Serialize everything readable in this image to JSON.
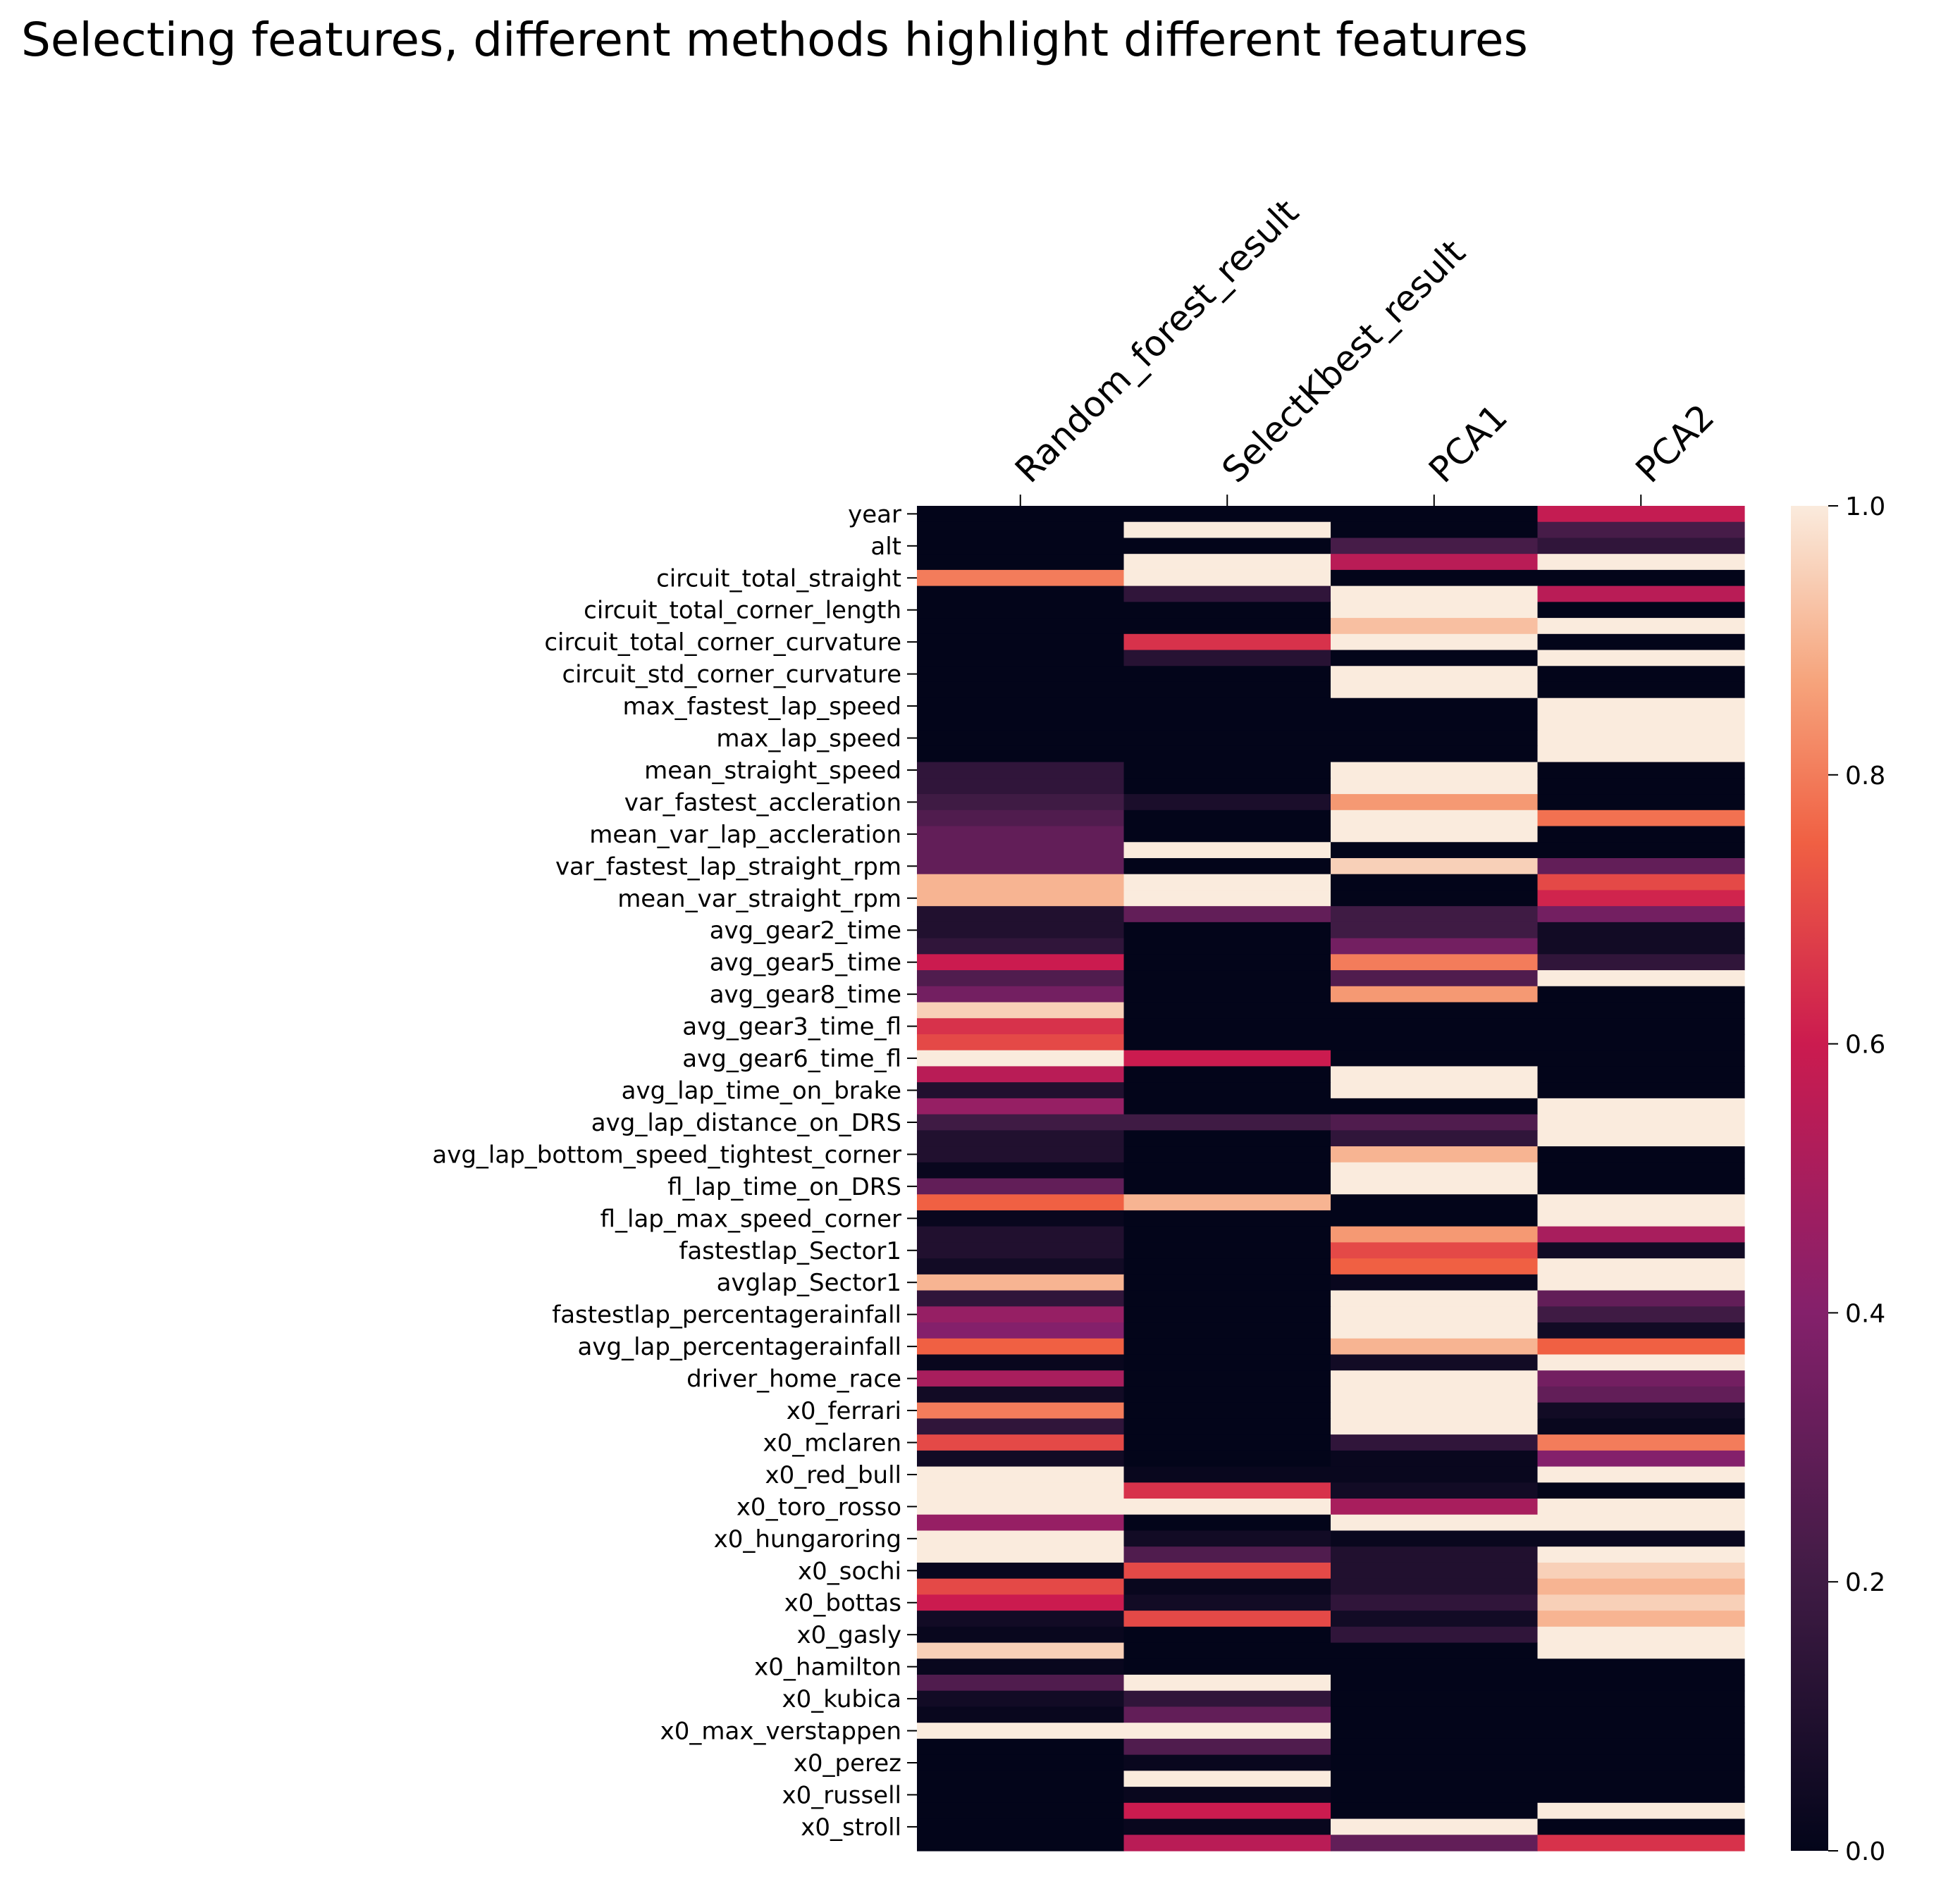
{
  "chart_data": {
    "type": "heatmap",
    "title": "Selecting features, different methods highlight different features",
    "columns": [
      "Random_forest_result",
      "SelectKbest_result",
      "PCA1",
      "PCA2"
    ],
    "row_tick_labels": [
      "year",
      "alt",
      "circuit_total_straight",
      "circuit_total_corner_length",
      "circuit_total_corner_curvature",
      "circuit_std_corner_curvature",
      "max_fastest_lap_speed",
      "max_lap_speed",
      "mean_straight_speed",
      "var_fastest_accleration",
      "mean_var_lap_accleration",
      "var_fastest_lap_straight_rpm",
      "mean_var_straight_rpm",
      "avg_gear2_time",
      "avg_gear5_time",
      "avg_gear8_time",
      "avg_gear3_time_fl",
      "avg_gear6_time_fl",
      "avg_lap_time_on_brake",
      "avg_lap_distance_on_DRS",
      "avg_lap_bottom_speed_tightest_corner",
      "fl_lap_time_on_DRS",
      "fl_lap_max_speed_corner",
      "fastestlap_Sector1",
      "avglap_Sector1",
      "fastestlap_percentagerainfall",
      "avg_lap_percentagerainfall",
      "driver_home_race",
      "x0_ferrari",
      "x0_mclaren",
      "x0_red_bull",
      "x0_toro_rosso",
      "x0_hungaroring",
      "x0_sochi",
      "x0_bottas",
      "x0_gasly",
      "x0_hamilton",
      "x0_kubica",
      "x0_max_verstappen",
      "x0_perez",
      "x0_russell",
      "x0_stroll"
    ],
    "row_count": 84,
    "colorbar": {
      "min": 0.0,
      "max": 1.0,
      "ticks": [
        "0.0",
        "0.2",
        "0.4",
        "0.6",
        "0.8",
        "1.0"
      ]
    },
    "colormap_stops": [
      {
        "v": 0.0,
        "color": "#03051a"
      },
      {
        "v": 0.2,
        "color": "#3f1b44"
      },
      {
        "v": 0.4,
        "color": "#84206b"
      },
      {
        "v": 0.6,
        "color": "#cb1b4f"
      },
      {
        "v": 0.75,
        "color": "#f06043"
      },
      {
        "v": 0.87,
        "color": "#f6a47c"
      },
      {
        "v": 1.0,
        "color": "#faebdd"
      }
    ],
    "values": [
      [
        0,
        0,
        0,
        0.58
      ],
      [
        0,
        1,
        0,
        0.22
      ],
      [
        0,
        0,
        0.22,
        0.15
      ],
      [
        0,
        1,
        0.55,
        1
      ],
      [
        0.8,
        1,
        0,
        0
      ],
      [
        0,
        0.15,
        1,
        0.55
      ],
      [
        0,
        0,
        1,
        0
      ],
      [
        0,
        0,
        0.92,
        1
      ],
      [
        0,
        0.65,
        1,
        0
      ],
      [
        0,
        0.12,
        0,
        1
      ],
      [
        0,
        0,
        1,
        0
      ],
      [
        0,
        0,
        1,
        0
      ],
      [
        0,
        0,
        0,
        1
      ],
      [
        0,
        0,
        0,
        1
      ],
      [
        0,
        0,
        0,
        1
      ],
      [
        0,
        0,
        0,
        1
      ],
      [
        0.15,
        0,
        1,
        0
      ],
      [
        0.15,
        0,
        1,
        0
      ],
      [
        0.2,
        0.08,
        0.85,
        0
      ],
      [
        0.25,
        0,
        1,
        0.78
      ],
      [
        0.3,
        0,
        1,
        0
      ],
      [
        0.3,
        1,
        0,
        0
      ],
      [
        0.3,
        0,
        0.95,
        0.3
      ],
      [
        0.9,
        1,
        0,
        0.7
      ],
      [
        0.9,
        1,
        0,
        0.62
      ],
      [
        0.1,
        0.3,
        0.2,
        0.35
      ],
      [
        0.1,
        0,
        0.2,
        0.05
      ],
      [
        0.15,
        0,
        0.35,
        0.05
      ],
      [
        0.6,
        0,
        0.8,
        0.15
      ],
      [
        0.25,
        0,
        0.25,
        1
      ],
      [
        0.35,
        0,
        0.85,
        0
      ],
      [
        0.95,
        0,
        0,
        0
      ],
      [
        0.65,
        0,
        0,
        0
      ],
      [
        0.7,
        0,
        0,
        0
      ],
      [
        1,
        0.6,
        0,
        0
      ],
      [
        0.55,
        0,
        1,
        0
      ],
      [
        0.1,
        0,
        1,
        0
      ],
      [
        0.45,
        0,
        0,
        1
      ],
      [
        0.2,
        0.2,
        0.25,
        1
      ],
      [
        0.1,
        0,
        0.15,
        1
      ],
      [
        0.1,
        0,
        0.9,
        0
      ],
      [
        0.02,
        0,
        1,
        0
      ],
      [
        0.3,
        0,
        1,
        0
      ],
      [
        0.75,
        0.9,
        0,
        1
      ],
      [
        0.02,
        0,
        0,
        1
      ],
      [
        0.1,
        0,
        0.85,
        0.5
      ],
      [
        0.1,
        0,
        0.7,
        0.05
      ],
      [
        0.05,
        0,
        0.75,
        1
      ],
      [
        0.9,
        0,
        0.02,
        1
      ],
      [
        0.15,
        0,
        1,
        0.3
      ],
      [
        0.45,
        0,
        1,
        0.2
      ],
      [
        0.4,
        0,
        1,
        0.05
      ],
      [
        0.75,
        0,
        0.9,
        0.75
      ],
      [
        0.02,
        0,
        0.05,
        1
      ],
      [
        0.5,
        0,
        1,
        0.35
      ],
      [
        0.05,
        0,
        1,
        0.3
      ],
      [
        0.8,
        0,
        1,
        0.05
      ],
      [
        0.15,
        0,
        1,
        0.02
      ],
      [
        0.7,
        0,
        0.15,
        0.8
      ],
      [
        0.05,
        0,
        0.02,
        0.4
      ],
      [
        1,
        0.02,
        0.02,
        1
      ],
      [
        1,
        0.65,
        0.05,
        0
      ],
      [
        1,
        1,
        0.5,
        1
      ],
      [
        0.45,
        0,
        1,
        1
      ],
      [
        1,
        0.05,
        0.02,
        0.02
      ],
      [
        1,
        0.25,
        0.1,
        1
      ],
      [
        0.02,
        0.7,
        0.1,
        0.95
      ],
      [
        0.7,
        0.02,
        0.1,
        0.9
      ],
      [
        0.6,
        0.05,
        0.15,
        0.95
      ],
      [
        0.05,
        0.7,
        0.05,
        0.9
      ],
      [
        0.02,
        0,
        0.15,
        1
      ],
      [
        0.95,
        0,
        0,
        1
      ],
      [
        0.02,
        0,
        0,
        0
      ],
      [
        0.25,
        1,
        0,
        0
      ],
      [
        0.05,
        0.15,
        0,
        0
      ],
      [
        0.02,
        0.3,
        0,
        0
      ],
      [
        1,
        1,
        0,
        0
      ],
      [
        0,
        0.25,
        0,
        0
      ],
      [
        0,
        0.02,
        0,
        0
      ],
      [
        0,
        1,
        0,
        0
      ],
      [
        0,
        0.02,
        0,
        0
      ],
      [
        0,
        0.6,
        0,
        1
      ],
      [
        0,
        0.02,
        1,
        0
      ],
      [
        0,
        0.55,
        0.3,
        0.65
      ]
    ]
  }
}
